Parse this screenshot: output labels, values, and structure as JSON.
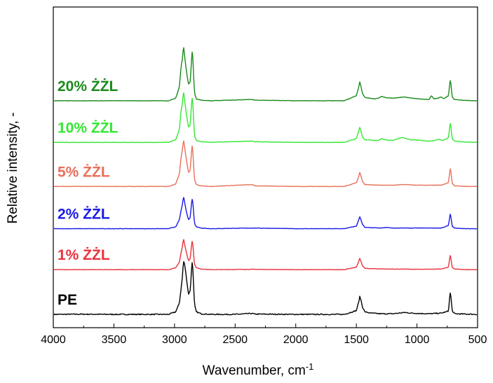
{
  "chart_data": {
    "type": "line",
    "xlabel": "Wavenumber, cm",
    "xlabel_sup": "-1",
    "ylabel": "Relative intensity, -",
    "xlim": [
      4000,
      500
    ],
    "x_reversed": true,
    "xticks": [
      4000,
      3500,
      3000,
      2500,
      2000,
      1500,
      1000,
      500
    ],
    "yticks_shown": false,
    "series": [
      {
        "name": "PE",
        "color": "#000000",
        "offset": 0,
        "noise": 1.6,
        "points": [
          [
            4000,
            0
          ],
          [
            3750,
            0.3
          ],
          [
            3500,
            0
          ],
          [
            3200,
            0
          ],
          [
            3050,
            0
          ],
          [
            2990,
            4
          ],
          [
            2960,
            18
          ],
          [
            2945,
            42
          ],
          [
            2935,
            60
          ],
          [
            2926,
            85
          ],
          [
            2915,
            78
          ],
          [
            2900,
            55
          ],
          [
            2885,
            32
          ],
          [
            2870,
            38
          ],
          [
            2860,
            70
          ],
          [
            2852,
            88
          ],
          [
            2845,
            55
          ],
          [
            2835,
            15
          ],
          [
            2820,
            4
          ],
          [
            2780,
            1
          ],
          [
            2700,
            0
          ],
          [
            2500,
            0
          ],
          [
            2360,
            1.5
          ],
          [
            2340,
            0.5
          ],
          [
            2000,
            0
          ],
          [
            1600,
            0
          ],
          [
            1500,
            6
          ],
          [
            1480,
            20
          ],
          [
            1472,
            28
          ],
          [
            1463,
            24
          ],
          [
            1450,
            12
          ],
          [
            1430,
            4
          ],
          [
            1380,
            2
          ],
          [
            1300,
            1
          ],
          [
            1200,
            1
          ],
          [
            1100,
            3
          ],
          [
            1050,
            2
          ],
          [
            900,
            1
          ],
          [
            800,
            2
          ],
          [
            740,
            5
          ],
          [
            730,
            28
          ],
          [
            724,
            36
          ],
          [
            718,
            24
          ],
          [
            710,
            6
          ],
          [
            690,
            1
          ],
          [
            600,
            0.5
          ],
          [
            500,
            0
          ]
        ]
      },
      {
        "name": "1% ŻŻL",
        "color": "#e8323c",
        "offset": 71,
        "noise": 0.6,
        "points": [
          [
            4000,
            0
          ],
          [
            3500,
            0
          ],
          [
            3200,
            0
          ],
          [
            3050,
            0
          ],
          [
            2990,
            3
          ],
          [
            2960,
            12
          ],
          [
            2945,
            28
          ],
          [
            2935,
            36
          ],
          [
            2926,
            50
          ],
          [
            2915,
            38
          ],
          [
            2900,
            26
          ],
          [
            2885,
            14
          ],
          [
            2870,
            18
          ],
          [
            2860,
            38
          ],
          [
            2852,
            48
          ],
          [
            2845,
            30
          ],
          [
            2835,
            8
          ],
          [
            2820,
            3
          ],
          [
            2780,
            1
          ],
          [
            2700,
            0
          ],
          [
            2360,
            0.5
          ],
          [
            2000,
            0
          ],
          [
            1600,
            0
          ],
          [
            1500,
            4
          ],
          [
            1480,
            13
          ],
          [
            1472,
            18
          ],
          [
            1463,
            14
          ],
          [
            1450,
            6
          ],
          [
            1430,
            2
          ],
          [
            1300,
            1
          ],
          [
            1200,
            1
          ],
          [
            1000,
            0.5
          ],
          [
            800,
            1
          ],
          [
            740,
            4
          ],
          [
            730,
            18
          ],
          [
            724,
            24
          ],
          [
            718,
            15
          ],
          [
            710,
            4
          ],
          [
            690,
            1
          ],
          [
            600,
            0
          ],
          [
            500,
            0
          ]
        ]
      },
      {
        "name": "2% ŻŻL",
        "color": "#1a1ae6",
        "offset": 136,
        "noise": 0.6,
        "points": [
          [
            4000,
            0
          ],
          [
            3500,
            0
          ],
          [
            3200,
            0
          ],
          [
            3050,
            0
          ],
          [
            2990,
            3
          ],
          [
            2960,
            14
          ],
          [
            2945,
            30
          ],
          [
            2935,
            38
          ],
          [
            2926,
            52
          ],
          [
            2915,
            40
          ],
          [
            2900,
            25
          ],
          [
            2885,
            14
          ],
          [
            2870,
            18
          ],
          [
            2860,
            40
          ],
          [
            2852,
            50
          ],
          [
            2845,
            32
          ],
          [
            2835,
            8
          ],
          [
            2820,
            3
          ],
          [
            2780,
            1
          ],
          [
            2700,
            0
          ],
          [
            2360,
            1
          ],
          [
            2000,
            0
          ],
          [
            1600,
            0
          ],
          [
            1500,
            4
          ],
          [
            1480,
            14
          ],
          [
            1472,
            19
          ],
          [
            1463,
            15
          ],
          [
            1450,
            7
          ],
          [
            1430,
            2
          ],
          [
            1300,
            1
          ],
          [
            1250,
            2
          ],
          [
            1200,
            1
          ],
          [
            1000,
            1
          ],
          [
            800,
            1
          ],
          [
            740,
            5
          ],
          [
            730,
            18
          ],
          [
            724,
            25
          ],
          [
            718,
            16
          ],
          [
            710,
            4
          ],
          [
            690,
            1
          ],
          [
            600,
            0
          ],
          [
            500,
            0
          ]
        ]
      },
      {
        "name": "5% ŻŻL",
        "color": "#e8705a",
        "offset": 203,
        "noise": 0.6,
        "points": [
          [
            4000,
            0
          ],
          [
            3500,
            0
          ],
          [
            3200,
            0
          ],
          [
            3050,
            0
          ],
          [
            2990,
            4
          ],
          [
            2960,
            20
          ],
          [
            2945,
            48
          ],
          [
            2935,
            58
          ],
          [
            2926,
            75
          ],
          [
            2915,
            60
          ],
          [
            2900,
            40
          ],
          [
            2885,
            22
          ],
          [
            2870,
            26
          ],
          [
            2860,
            55
          ],
          [
            2852,
            68
          ],
          [
            2845,
            42
          ],
          [
            2835,
            10
          ],
          [
            2820,
            3
          ],
          [
            2780,
            1
          ],
          [
            2700,
            0
          ],
          [
            2360,
            3
          ],
          [
            2340,
            1
          ],
          [
            2000,
            0
          ],
          [
            1600,
            0
          ],
          [
            1500,
            6
          ],
          [
            1480,
            16
          ],
          [
            1472,
            22
          ],
          [
            1463,
            18
          ],
          [
            1450,
            8
          ],
          [
            1430,
            3
          ],
          [
            1300,
            2
          ],
          [
            1200,
            2
          ],
          [
            1100,
            3
          ],
          [
            1000,
            2
          ],
          [
            800,
            2
          ],
          [
            740,
            6
          ],
          [
            730,
            22
          ],
          [
            724,
            30
          ],
          [
            718,
            20
          ],
          [
            710,
            5
          ],
          [
            690,
            1
          ],
          [
            600,
            0
          ],
          [
            500,
            0
          ]
        ]
      },
      {
        "name": "10% ŻŻL",
        "color": "#32e832",
        "offset": 273,
        "noise": 0.6,
        "points": [
          [
            4000,
            0
          ],
          [
            3500,
            0
          ],
          [
            3200,
            0
          ],
          [
            3050,
            0
          ],
          [
            2990,
            4
          ],
          [
            2960,
            20
          ],
          [
            2945,
            52
          ],
          [
            2935,
            62
          ],
          [
            2926,
            82
          ],
          [
            2915,
            64
          ],
          [
            2900,
            42
          ],
          [
            2885,
            24
          ],
          [
            2870,
            28
          ],
          [
            2860,
            60
          ],
          [
            2852,
            74
          ],
          [
            2845,
            45
          ],
          [
            2835,
            10
          ],
          [
            2820,
            3
          ],
          [
            2780,
            1
          ],
          [
            2700,
            0
          ],
          [
            2360,
            2
          ],
          [
            2340,
            1
          ],
          [
            2000,
            0
          ],
          [
            1600,
            0
          ],
          [
            1500,
            6
          ],
          [
            1480,
            18
          ],
          [
            1472,
            24
          ],
          [
            1463,
            19
          ],
          [
            1450,
            9
          ],
          [
            1430,
            4
          ],
          [
            1320,
            3
          ],
          [
            1290,
            6
          ],
          [
            1260,
            4
          ],
          [
            1200,
            3
          ],
          [
            1120,
            8
          ],
          [
            1090,
            6
          ],
          [
            1050,
            4
          ],
          [
            1020,
            4
          ],
          [
            900,
            2
          ],
          [
            850,
            3
          ],
          [
            820,
            5
          ],
          [
            790,
            3
          ],
          [
            740,
            7
          ],
          [
            730,
            24
          ],
          [
            724,
            32
          ],
          [
            718,
            22
          ],
          [
            710,
            6
          ],
          [
            690,
            2
          ],
          [
            600,
            0.5
          ],
          [
            500,
            0
          ]
        ]
      },
      {
        "name": "20% ŻŻL",
        "color": "#1a8a1a",
        "offset": 339,
        "noise": 0.6,
        "points": [
          [
            4000,
            0
          ],
          [
            3500,
            0
          ],
          [
            3200,
            0
          ],
          [
            3050,
            0
          ],
          [
            2990,
            4
          ],
          [
            2960,
            22
          ],
          [
            2945,
            56
          ],
          [
            2935,
            66
          ],
          [
            2926,
            88
          ],
          [
            2915,
            68
          ],
          [
            2900,
            45
          ],
          [
            2885,
            26
          ],
          [
            2870,
            30
          ],
          [
            2860,
            64
          ],
          [
            2852,
            84
          ],
          [
            2845,
            50
          ],
          [
            2835,
            12
          ],
          [
            2820,
            3
          ],
          [
            2780,
            1
          ],
          [
            2700,
            0
          ],
          [
            2360,
            2
          ],
          [
            2340,
            1
          ],
          [
            2000,
            0
          ],
          [
            1600,
            0
          ],
          [
            1500,
            8
          ],
          [
            1480,
            22
          ],
          [
            1472,
            30
          ],
          [
            1463,
            24
          ],
          [
            1450,
            12
          ],
          [
            1430,
            5
          ],
          [
            1350,
            3
          ],
          [
            1320,
            4
          ],
          [
            1290,
            7
          ],
          [
            1260,
            5
          ],
          [
            1200,
            4
          ],
          [
            1150,
            5
          ],
          [
            1110,
            6
          ],
          [
            1070,
            5
          ],
          [
            1030,
            4
          ],
          [
            990,
            3
          ],
          [
            900,
            2
          ],
          [
            880,
            8
          ],
          [
            860,
            3
          ],
          [
            830,
            4
          ],
          [
            800,
            6
          ],
          [
            780,
            3
          ],
          [
            740,
            8
          ],
          [
            730,
            26
          ],
          [
            724,
            34
          ],
          [
            718,
            24
          ],
          [
            710,
            6
          ],
          [
            690,
            2
          ],
          [
            600,
            0.5
          ],
          [
            500,
            0
          ]
        ]
      }
    ]
  }
}
